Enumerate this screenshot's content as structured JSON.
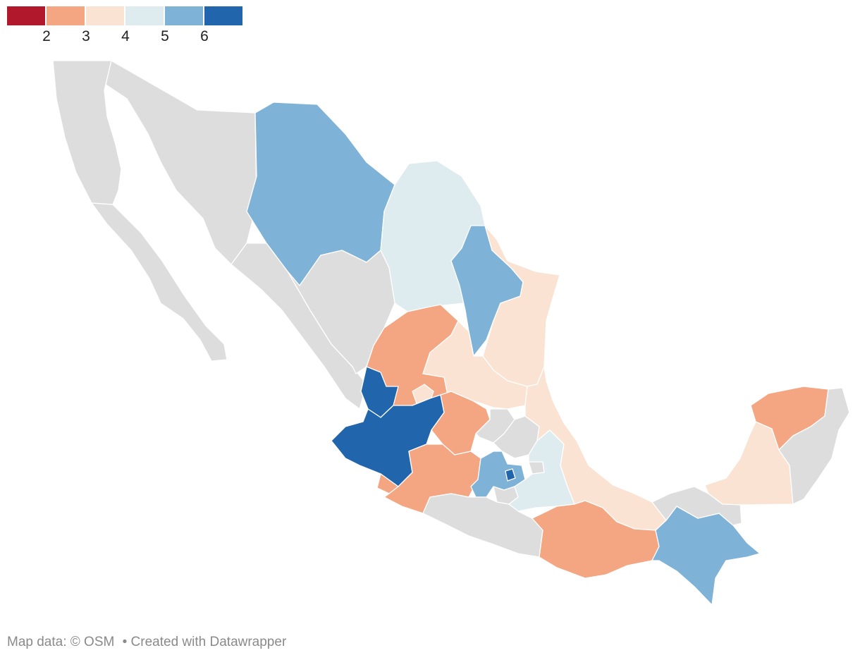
{
  "legend": {
    "bins": [
      {
        "color": "#b2182b"
      },
      {
        "color": "#f4a582"
      },
      {
        "color": "#fbe3d4"
      },
      {
        "color": "#deecef"
      },
      {
        "color": "#7eb2d6"
      },
      {
        "color": "#2166ac"
      }
    ],
    "tick_labels": [
      "2",
      "3",
      "4",
      "5",
      "6"
    ]
  },
  "map": {
    "no_data_color": "#dddddd",
    "regions": [
      {
        "name": "Baja California",
        "value": null
      },
      {
        "name": "Baja California Sur",
        "value": null
      },
      {
        "name": "Sonora",
        "value": null
      },
      {
        "name": "Chihuahua",
        "value": 5
      },
      {
        "name": "Coahuila",
        "value": 4
      },
      {
        "name": "Nuevo León",
        "value": 5
      },
      {
        "name": "Tamaulipas",
        "value": 3
      },
      {
        "name": "Sinaloa",
        "value": null
      },
      {
        "name": "Durango",
        "value": null
      },
      {
        "name": "Zacatecas",
        "value": 2
      },
      {
        "name": "San Luis Potosí",
        "value": 3
      },
      {
        "name": "Nayarit",
        "value": 6
      },
      {
        "name": "Aguascalientes",
        "value": 3
      },
      {
        "name": "Jalisco",
        "value": 6
      },
      {
        "name": "Guanajuato",
        "value": 2
      },
      {
        "name": "Querétaro",
        "value": null
      },
      {
        "name": "Hidalgo",
        "value": null
      },
      {
        "name": "Colima",
        "value": 2
      },
      {
        "name": "Michoacán",
        "value": 2
      },
      {
        "name": "Estado de México",
        "value": 5
      },
      {
        "name": "Ciudad de México",
        "value": 6
      },
      {
        "name": "Morelos",
        "value": null
      },
      {
        "name": "Tlaxcala",
        "value": null
      },
      {
        "name": "Puebla",
        "value": 4
      },
      {
        "name": "Veracruz",
        "value": 3
      },
      {
        "name": "Guerrero",
        "value": null
      },
      {
        "name": "Oaxaca",
        "value": 2
      },
      {
        "name": "Chiapas",
        "value": 5
      },
      {
        "name": "Tabasco",
        "value": null
      },
      {
        "name": "Campeche",
        "value": 3
      },
      {
        "name": "Yucatán",
        "value": 2
      },
      {
        "name": "Quintana Roo",
        "value": null
      }
    ]
  },
  "footer": {
    "map_credit": "Map data: © OSM",
    "created_with": "• Created with Datawrapper"
  }
}
